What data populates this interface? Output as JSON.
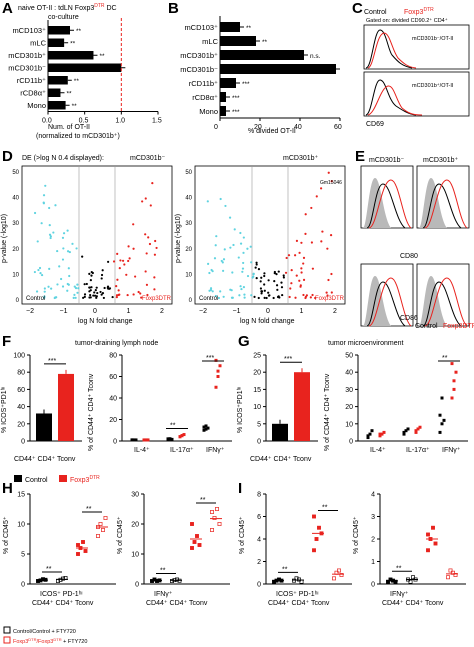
{
  "colors": {
    "control": "#000000",
    "treated": "#e8231e",
    "grey": "#9a9a9a",
    "cyan": "#5fd3e0",
    "dashed": "#e8231e"
  },
  "panels": {
    "A": "A",
    "B": "B",
    "C": "C",
    "D": "D",
    "E": "E",
    "F": "F",
    "G": "G",
    "H": "H",
    "I": "I"
  },
  "chart_data": [
    {
      "id": "A",
      "type": "bar",
      "title": "naive OT-II : tdLN Foxp3DTR DC co-culture",
      "title_line1": "naive OT-II : tdLN Foxp3",
      "title_sup": "DTR",
      "title_line1b": " DC",
      "title_line2": "co-culture",
      "categories": [
        "mCD103⁺",
        "mLC",
        "mCD301b⁺",
        "mCD301b⁻",
        "rCD11b⁺",
        "rCD8α⁺",
        "Mono"
      ],
      "values": [
        0.3,
        0.22,
        0.62,
        1.0,
        0.27,
        0.17,
        0.24
      ],
      "sig": [
        "**",
        "**",
        "**",
        "",
        "**",
        "**",
        "**"
      ],
      "xlabel_line1": "Num. of OT-II",
      "xlabel_line2": "(normalized to mCD301b⁺)",
      "ticks": [
        "0.0",
        "0.5",
        "1.0",
        "1.5"
      ],
      "xlim": [
        0,
        1.5
      ],
      "ref_line": 1.0
    },
    {
      "id": "B",
      "type": "bar",
      "categories": [
        "mCD103⁺",
        "mLC",
        "mCD301b⁺",
        "mCD301b⁻",
        "rCD11b⁺",
        "rCD8α⁺",
        "Mono"
      ],
      "values": [
        10,
        18,
        42,
        58,
        8,
        3,
        3
      ],
      "sig": [
        "**",
        "**",
        "n.s.",
        "",
        "***",
        "***",
        "***"
      ],
      "xlabel": "% divided OT-II",
      "ticks": [
        "0",
        "20",
        "40",
        "60"
      ],
      "xlim": [
        0,
        60
      ]
    },
    {
      "id": "C",
      "type": "histogram",
      "legend_control": "Control",
      "legend_treated": "Foxp3",
      "legend_treated_sup": "DTR",
      "gate": "Gated on: divided CD90.2⁺ CD4⁺",
      "labels": [
        "mCD301b⁻/OT-II",
        "mCD301b⁺/OT-II"
      ],
      "xlabel": "CD69"
    },
    {
      "id": "D",
      "type": "scatter",
      "header": "DE (>log N 0.4 displayed):",
      "subtitles": [
        "mCD301b⁻",
        "mCD301b⁺"
      ],
      "ylabel": "p-value (-log10)",
      "xlabel": "log N fold change",
      "xticks": [
        "−2",
        "−1",
        "0",
        "1",
        "2"
      ],
      "yticks": [
        "50",
        "40",
        "30",
        "20",
        "10",
        "0"
      ],
      "corner_left": "Control",
      "corner_right": "Foxp3",
      "corner_right_sup": "DTR",
      "annot_right": "Gm15046"
    },
    {
      "id": "E",
      "type": "histogram",
      "col_labels": [
        "mCD301b⁻",
        "mCD301b⁺"
      ],
      "row_labels": [
        "CD80",
        "CD86"
      ],
      "legend_control": "Control",
      "legend_treated": "Foxp3",
      "legend_treated_sup": "DTR"
    },
    {
      "id": "F",
      "type": "bar",
      "header": "tumor-draining lymph node",
      "bar": {
        "ylabel": "% ICOS⁺PD1ʰᶦ",
        "categories": [
          "Control",
          "Foxp3DTR"
        ],
        "values": [
          32,
          78
        ],
        "sig": "***",
        "yticks": [
          "0",
          "20",
          "40",
          "60",
          "80",
          "100"
        ],
        "ylim": [
          0,
          100
        ],
        "xlabel": "CD44⁺ CD4⁺ Tconv"
      },
      "scatter": {
        "ylabel": "% of CD44⁺ CD4⁺ Tconv",
        "categories": [
          "IL-4⁺",
          "IL-17α⁺",
          "IFNγ⁺"
        ],
        "control": [
          [
            1,
            1,
            1,
            1
          ],
          [
            1.5,
            2,
            1.5,
            2,
            2
          ],
          [
            10,
            11,
            12,
            13,
            14
          ]
        ],
        "treated": [
          [
            1,
            1,
            1
          ],
          [
            4,
            5,
            6,
            4,
            5
          ],
          [
            50,
            60,
            70,
            75,
            65
          ]
        ],
        "sig": [
          "",
          "**",
          "***"
        ],
        "yticks": [
          "0",
          "20",
          "40",
          "60",
          "80"
        ],
        "ylim": [
          0,
          80
        ]
      }
    },
    {
      "id": "G",
      "type": "bar",
      "header": "tumor microenvironment",
      "bar": {
        "ylabel": "% ICOS⁺PD1ʰᶦ",
        "categories": [
          "Control",
          "Foxp3DTR"
        ],
        "values": [
          5,
          20
        ],
        "sig": "***",
        "yticks": [
          "0",
          "5",
          "10",
          "15",
          "20",
          "25"
        ],
        "ylim": [
          0,
          25
        ],
        "xlabel": "CD44⁺ CD4⁺ Tconv"
      },
      "scatter": {
        "ylabel": "% of CD44⁺ CD4⁺ Tconv",
        "categories": [
          "IL-4⁺",
          "IL-17α⁺",
          "IFNγ⁺"
        ],
        "control": [
          [
            2,
            4,
            6,
            3
          ],
          [
            4,
            6,
            7,
            5
          ],
          [
            5,
            10,
            12,
            15,
            25
          ]
        ],
        "treated": [
          [
            3,
            4,
            5,
            4
          ],
          [
            6,
            7,
            8,
            5
          ],
          [
            25,
            30,
            40,
            45,
            35
          ]
        ],
        "sig": [
          "",
          "",
          "**"
        ],
        "yticks": [
          "0",
          "10",
          "20",
          "30",
          "40",
          "50"
        ],
        "ylim": [
          0,
          50
        ]
      }
    },
    {
      "id": "H",
      "type": "scatter",
      "plots": [
        {
          "ylabel": "% of CD45⁺",
          "yticks": [
            "0",
            "5",
            "10",
            "15"
          ],
          "ylim": [
            0,
            15
          ],
          "groups": [
            [
              0.5,
              0.6,
              0.8,
              0.7
            ],
            [
              0.5,
              0.7,
              0.9,
              1.0
            ],
            [
              5,
              6,
              7,
              5.5,
              6.5
            ],
            [
              8,
              10,
              9,
              11,
              9.5
            ]
          ],
          "sig": [
            "**",
            "**"
          ],
          "xlabel_line1": "ICOS⁺ PD-1ʰᶦ",
          "xlabel_line2": "CD44⁺ CD4⁺ Tconv"
        },
        {
          "ylabel": "% of CD45⁺",
          "yticks": [
            "0",
            "10",
            "20",
            "30"
          ],
          "ylim": [
            0,
            30
          ],
          "groups": [
            [
              1,
              1.5,
              1,
              1.2
            ],
            [
              1,
              1.3,
              1.5,
              1.1
            ],
            [
              12,
              14,
              16,
              13,
              20
            ],
            [
              18,
              22,
              25,
              20,
              24
            ]
          ],
          "sig": [
            "**",
            "**"
          ],
          "xlabel_line1": "IFNγ⁺",
          "xlabel_line2": "CD44⁺ CD4⁺ Tconv"
        }
      ],
      "legend": [
        {
          "label": "Control",
          "color": "#000000"
        },
        {
          "label": "Foxp3",
          "sup": "DTR",
          "color": "#e8231e"
        }
      ],
      "legend_H": [
        {
          "label": "Control/Control + FTY720"
        },
        {
          "label": "Foxp3",
          "sup": "DTR",
          "tail": "/Foxp3",
          "sup2": "DTR",
          "tail2": " + FTY720"
        }
      ]
    },
    {
      "id": "I",
      "type": "scatter",
      "plots": [
        {
          "ylabel": "% of CD45⁺",
          "yticks": [
            "0",
            "2",
            "4",
            "6",
            "8"
          ],
          "ylim": [
            0,
            8
          ],
          "groups": [
            [
              0.2,
              0.3,
              0.4,
              0.3
            ],
            [
              0.3,
              0.5,
              0.4,
              0.2
            ],
            [
              3,
              4,
              5,
              4.5,
              6
            ],
            [
              0.5,
              1,
              1.2,
              0.8
            ]
          ],
          "sig": [
            "**",
            "**"
          ],
          "xlabel_line1": "ICOS⁺ PD-1ʰᶦ",
          "xlabel_line2": "CD44⁺ CD4⁺ Tconv"
        },
        {
          "ylabel": "% of CD45⁺",
          "yticks": [
            "0",
            "1",
            "2",
            "3",
            "4"
          ],
          "ylim": [
            0,
            4
          ],
          "groups": [
            [
              0.1,
              0.2,
              0.15,
              0.1
            ],
            [
              0.2,
              0.1,
              0.3,
              0.2
            ],
            [
              1.5,
              2,
              2.5,
              1.8,
              2.2
            ],
            [
              0.3,
              0.6,
              0.5,
              0.4
            ]
          ],
          "sig": [
            "**"
          ],
          "xlabel_line1": "IFNγ⁺",
          "xlabel_line2": "CD44⁺ CD4⁺ Tconv"
        }
      ]
    }
  ]
}
